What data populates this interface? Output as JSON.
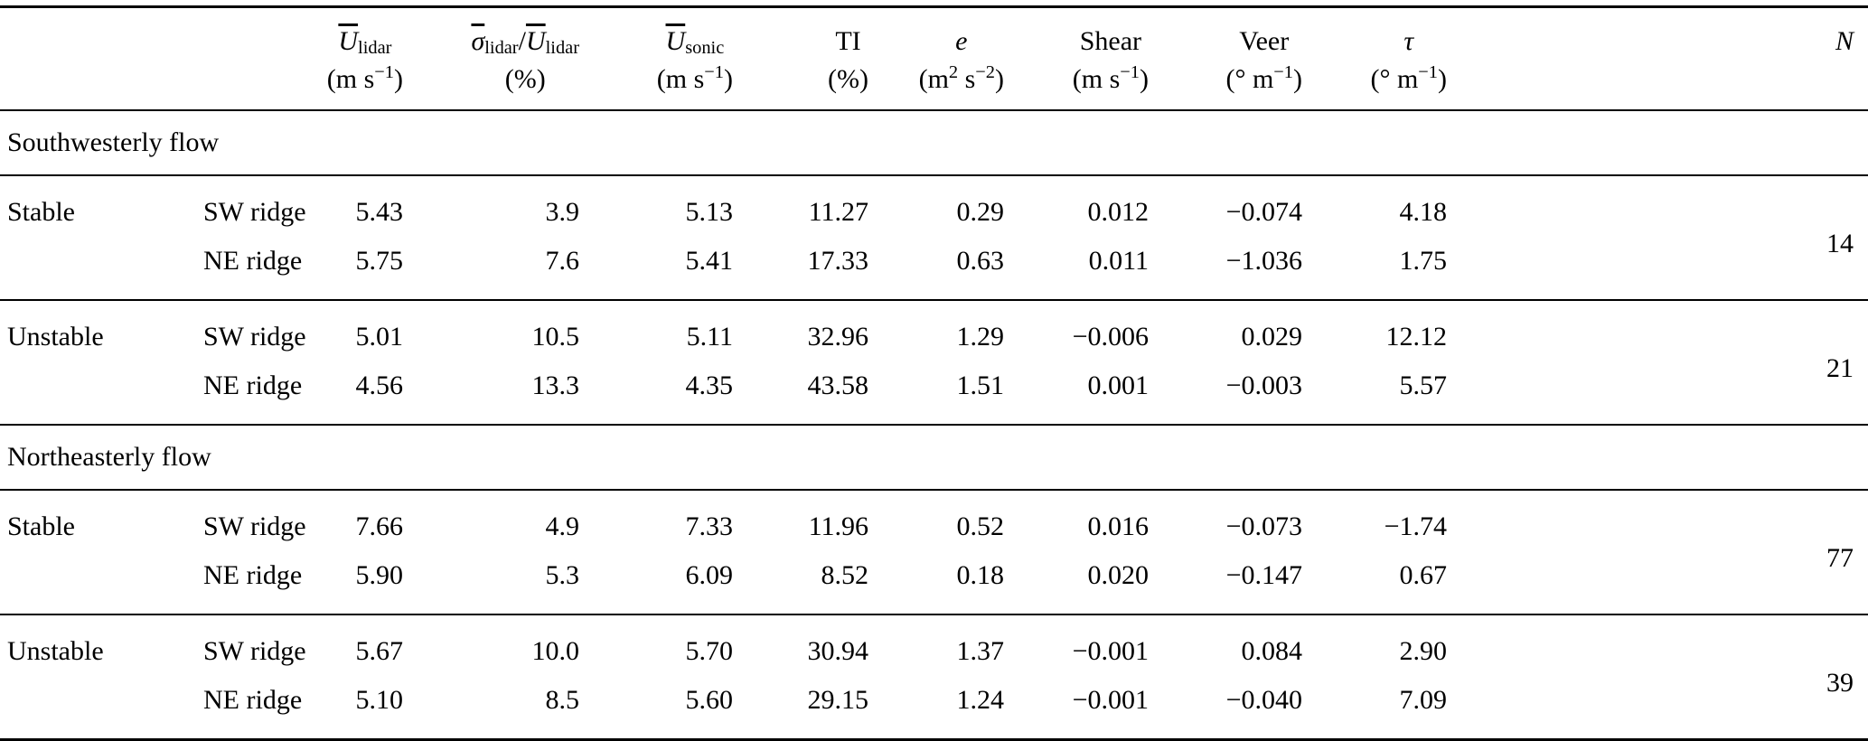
{
  "table": {
    "columns": [
      {
        "id": "mean-lidar-wind-speed",
        "symbol_html": "<i class=\"ov\">U</i><sub>lidar</sub>",
        "units_html": "(m s<sup>−1</sup>)"
      },
      {
        "id": "lidar-turbulence-ratio",
        "symbol_html": "<i class=\"ov\">σ</i><sub>lidar</sub>/<i class=\"ov\">U</i><sub>lidar</sub>",
        "units_html": "(%)"
      },
      {
        "id": "mean-sonic-wind-speed",
        "symbol_html": "<i class=\"ov\">U</i><sub>sonic</sub>",
        "units_html": "(m s<sup>−1</sup>)"
      },
      {
        "id": "turbulence-intensity",
        "symbol_html": "TI",
        "units_html": "(%)"
      },
      {
        "id": "turbulence-kinetic-energy",
        "symbol_html": "<i>e</i>",
        "units_html": "(m<sup>2</sup> s<sup>−2</sup>)"
      },
      {
        "id": "shear",
        "symbol_html": "Shear",
        "units_html": "(m s<sup>−1</sup>)"
      },
      {
        "id": "veer",
        "symbol_html": "Veer",
        "units_html": "(° m<sup>−1</sup>)"
      },
      {
        "id": "tau",
        "symbol_html": "<i>τ</i>",
        "units_html": "(° m<sup>−1</sup>)"
      },
      {
        "id": "sample-count",
        "symbol_html": "<i>N</i>",
        "units_html": ""
      }
    ],
    "sections": [
      {
        "title": "Southwesterly flow",
        "groups": [
          {
            "stability": "Stable",
            "n": "14",
            "rows": [
              {
                "ridge": "SW ridge",
                "values": [
                  "5.43",
                  "3.9",
                  "5.13",
                  "11.27",
                  "0.29",
                  "0.012",
                  "−0.074",
                  "4.18"
                ]
              },
              {
                "ridge": "NE ridge",
                "values": [
                  "5.75",
                  "7.6",
                  "5.41",
                  "17.33",
                  "0.63",
                  "0.011",
                  "−1.036",
                  "1.75"
                ]
              }
            ]
          },
          {
            "stability": "Unstable",
            "n": "21",
            "rows": [
              {
                "ridge": "SW ridge",
                "values": [
                  "5.01",
                  "10.5",
                  "5.11",
                  "32.96",
                  "1.29",
                  "−0.006",
                  "0.029",
                  "12.12"
                ]
              },
              {
                "ridge": "NE ridge",
                "values": [
                  "4.56",
                  "13.3",
                  "4.35",
                  "43.58",
                  "1.51",
                  "0.001",
                  "−0.003",
                  "5.57"
                ]
              }
            ]
          }
        ]
      },
      {
        "title": "Northeasterly flow",
        "groups": [
          {
            "stability": "Stable",
            "n": "77",
            "rows": [
              {
                "ridge": "SW ridge",
                "values": [
                  "7.66",
                  "4.9",
                  "7.33",
                  "11.96",
                  "0.52",
                  "0.016",
                  "−0.073",
                  "−1.74"
                ]
              },
              {
                "ridge": "NE ridge",
                "values": [
                  "5.90",
                  "5.3",
                  "6.09",
                  "8.52",
                  "0.18",
                  "0.020",
                  "−0.147",
                  "0.67"
                ]
              }
            ]
          },
          {
            "stability": "Unstable",
            "n": "39",
            "rows": [
              {
                "ridge": "SW ridge",
                "values": [
                  "5.67",
                  "10.0",
                  "5.70",
                  "30.94",
                  "1.37",
                  "−0.001",
                  "0.084",
                  "2.90"
                ]
              },
              {
                "ridge": "NE ridge",
                "values": [
                  "5.10",
                  "8.5",
                  "5.60",
                  "29.15",
                  "1.24",
                  "−0.001",
                  "−0.040",
                  "7.09"
                ]
              }
            ]
          }
        ]
      }
    ]
  }
}
